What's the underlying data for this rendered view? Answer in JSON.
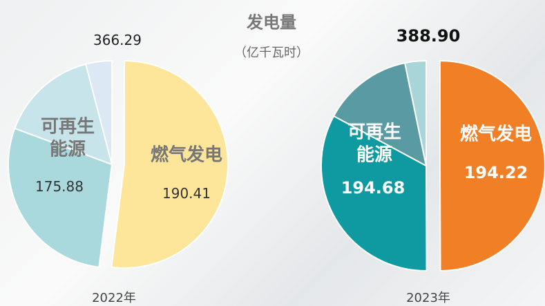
{
  "title": "发电量",
  "subtitle": "（亿千瓦时）",
  "chart_data": [
    {
      "type": "pie",
      "year": "2022年",
      "total": 366.29,
      "slices": [
        {
          "name": "燃气发电",
          "value": 190.41,
          "color": "#fde599"
        },
        {
          "name": "可再生能源",
          "value": 175.88,
          "parts": [
            105,
            56,
            15
          ],
          "colors": [
            "#a9d8dd",
            "#c6e4e9",
            "#dde8f5"
          ]
        }
      ]
    },
    {
      "type": "pie",
      "year": "2023年",
      "total": {
        "value": 388.9,
        "label": "388.90"
      },
      "slices": [
        {
          "name": "燃气发电",
          "value": 194.22,
          "color": "#f07f26"
        },
        {
          "name": "可再生能源",
          "value": 194.68,
          "parts": [
            128,
            54,
            13
          ],
          "colors": [
            "#0e9aa0",
            "#5a9ba3",
            "#a8d6d8"
          ]
        }
      ]
    }
  ]
}
